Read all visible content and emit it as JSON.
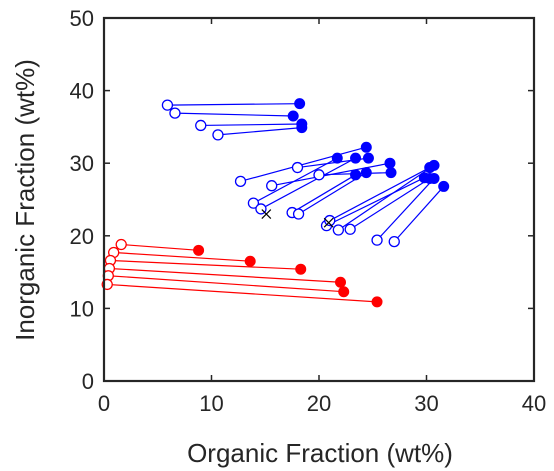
{
  "chart_data": {
    "type": "scatter",
    "title": "",
    "xlabel": "Organic Fraction (wt%)",
    "ylabel": "Inorganic Fraction (wt%)",
    "xlim": [
      0,
      40
    ],
    "ylim": [
      0,
      50
    ],
    "xticks": [
      0,
      10,
      20,
      30,
      40
    ],
    "yticks": [
      0,
      10,
      20,
      30,
      40,
      50
    ],
    "xtick_labels": [
      "0",
      "10",
      "20",
      "30",
      "40"
    ],
    "ytick_labels": [
      "0",
      "10",
      "20",
      "30",
      "40",
      "50"
    ],
    "grid": false,
    "legend": "none",
    "series": [
      {
        "color": "#0000ff",
        "marker_open": "circle-open",
        "marker_filled": "circle-filled",
        "pairs": [
          {
            "open": [
              5.9,
              38.0
            ],
            "filled": [
              18.2,
              38.2
            ]
          },
          {
            "open": [
              6.6,
              36.9
            ],
            "filled": [
              17.6,
              36.5
            ]
          },
          {
            "open": [
              9.0,
              35.2
            ],
            "filled": [
              18.4,
              35.4
            ]
          },
          {
            "open": [
              10.6,
              33.9
            ],
            "filled": [
              18.4,
              34.9
            ]
          },
          {
            "open": [
              12.7,
              27.5
            ],
            "filled": [
              24.4,
              32.2
            ]
          },
          {
            "open": [
              13.9,
              24.5
            ],
            "filled": [
              21.7,
              30.7
            ]
          },
          {
            "open": [
              14.6,
              23.7
            ],
            "filled": [
              23.4,
              30.7
            ]
          },
          {
            "open": [
              18.0,
              29.4
            ],
            "filled": [
              24.6,
              30.7
            ]
          },
          {
            "open": [
              15.6,
              26.9
            ],
            "filled": [
              26.6,
              30.0
            ]
          },
          {
            "open": [
              17.5,
              23.2
            ],
            "filled": [
              23.4,
              28.4
            ]
          },
          {
            "open": [
              18.1,
              23.0
            ],
            "filled": [
              24.4,
              28.7
            ]
          },
          {
            "open": [
              20.0,
              28.4
            ],
            "filled": [
              26.7,
              28.7
            ]
          },
          {
            "open": [
              20.7,
              21.4
            ],
            "filled": [
              29.8,
              28.0
            ]
          },
          {
            "open": [
              21.0,
              22.1
            ],
            "filled": [
              30.3,
              29.4
            ]
          },
          {
            "open": [
              21.8,
              20.8
            ],
            "filled": [
              30.7,
              29.7
            ]
          },
          {
            "open": [
              22.9,
              20.9
            ],
            "filled": [
              30.3,
              27.9
            ]
          },
          {
            "open": [
              25.4,
              19.4
            ],
            "filled": [
              30.7,
              27.9
            ]
          },
          {
            "open": [
              27.0,
              19.2
            ],
            "filled": [
              31.6,
              26.8
            ]
          }
        ],
        "cross_markers": [
          [
            15.1,
            23.0
          ],
          [
            20.9,
            21.8
          ]
        ]
      },
      {
        "color": "#ff0000",
        "marker_open": "circle-open",
        "marker_filled": "circle-filled",
        "pairs": [
          {
            "open": [
              1.6,
              18.8
            ],
            "filled": [
              8.8,
              18.0
            ]
          },
          {
            "open": [
              0.9,
              17.7
            ],
            "filled": [
              13.6,
              16.5
            ]
          },
          {
            "open": [
              0.6,
              16.6
            ],
            "filled": [
              18.3,
              15.4
            ]
          },
          {
            "open": [
              0.5,
              15.5
            ],
            "filled": [
              22.0,
              13.6
            ]
          },
          {
            "open": [
              0.4,
              14.5
            ],
            "filled": [
              22.3,
              12.3
            ]
          },
          {
            "open": [
              0.3,
              13.3
            ],
            "filled": [
              25.4,
              10.9
            ]
          }
        ]
      }
    ]
  }
}
